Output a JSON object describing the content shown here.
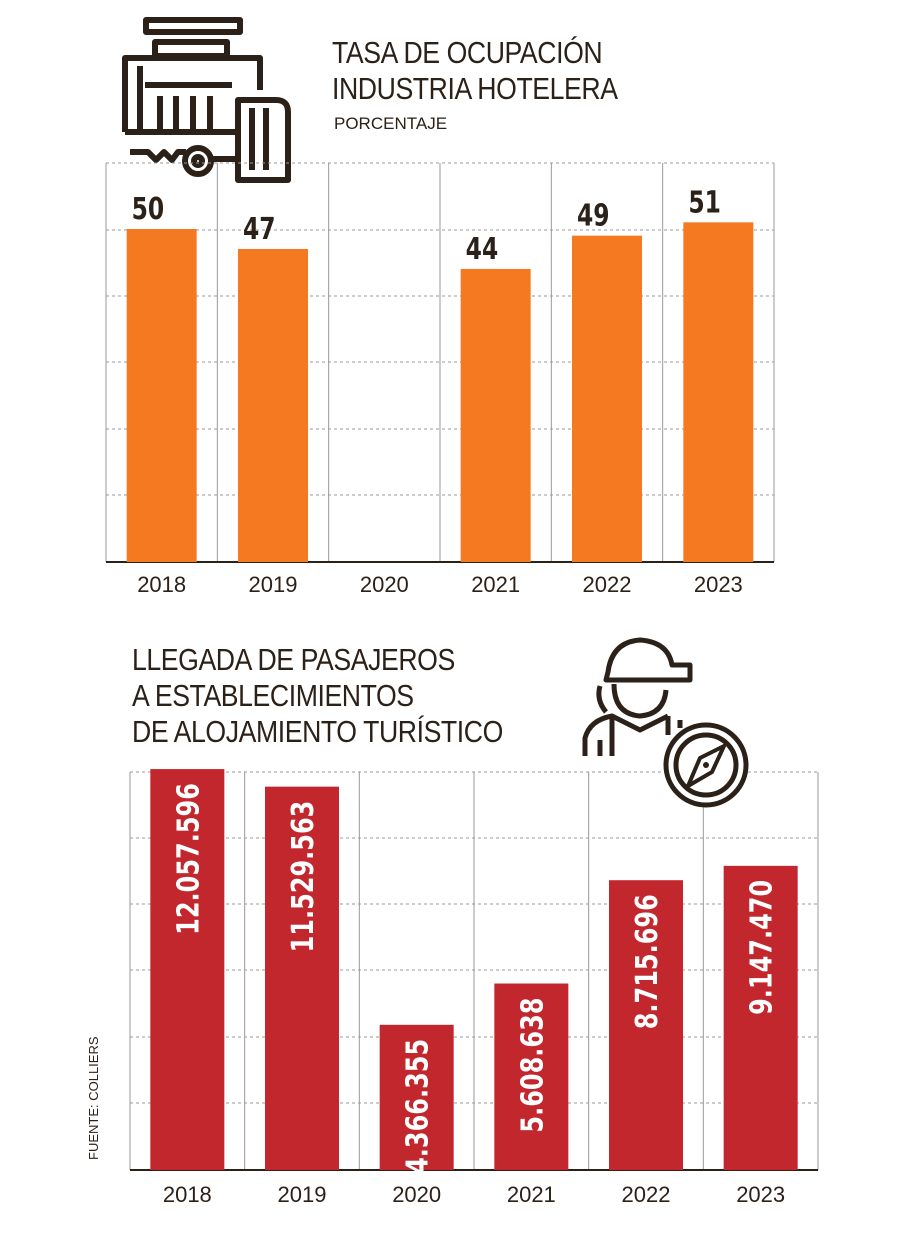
{
  "chart_data": [
    {
      "type": "bar",
      "title_lines": [
        "TASA DE OCUPACIÓN",
        "INDUSTRIA HOTELERA"
      ],
      "subtitle": "PORCENTAJE",
      "categories": [
        "2018",
        "2019",
        "2020",
        "2021",
        "2022",
        "2023"
      ],
      "values": [
        50,
        47,
        null,
        44,
        49,
        51
      ],
      "labels": [
        "50",
        "47",
        "",
        "44",
        "49",
        "51"
      ],
      "ylim": [
        0,
        60
      ],
      "grid": true,
      "bar_color": "#f47920",
      "icon": "hotel-keys-icon"
    },
    {
      "type": "bar",
      "title_lines": [
        "LLEGADA DE PASAJEROS",
        "A ESTABLECIMIENTOS",
        "DE ALOJAMIENTO TURÍSTICO"
      ],
      "categories": [
        "2018",
        "2019",
        "2020",
        "2021",
        "2022",
        "2023"
      ],
      "values": [
        12057596,
        11529563,
        4366355,
        5608638,
        8715696,
        9147470
      ],
      "labels": [
        "12.057.596",
        "11.529.563",
        "4.366.355",
        "5.608.638",
        "8.715.696",
        "9.147.470"
      ],
      "ylim": [
        0,
        12000000
      ],
      "grid": true,
      "bar_color": "#c1272d",
      "icon": "traveler-compass-icon"
    }
  ],
  "source": "FUENTE: COLLIERS"
}
